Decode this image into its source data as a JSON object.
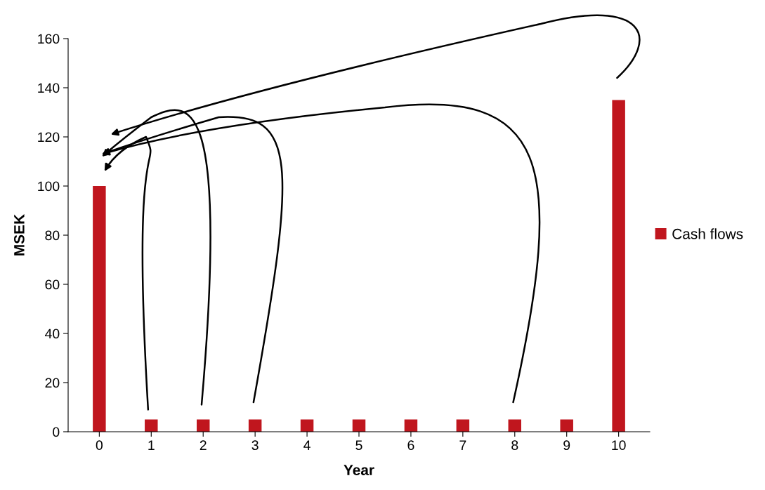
{
  "chart_data": {
    "type": "bar",
    "xlabel": "Year",
    "ylabel": "MSEK",
    "categories": [
      "0",
      "1",
      "2",
      "3",
      "4",
      "5",
      "6",
      "7",
      "8",
      "9",
      "10"
    ],
    "series": [
      {
        "name": "Cash flows",
        "color": "#c0161e",
        "values": [
          100,
          5,
          5,
          5,
          5,
          5,
          5,
          5,
          5,
          5,
          135
        ]
      }
    ],
    "ylim": [
      0,
      160
    ],
    "yticks": [
      0,
      20,
      40,
      60,
      80,
      100,
      120,
      140,
      160
    ],
    "grid": false,
    "legend": "right"
  }
}
